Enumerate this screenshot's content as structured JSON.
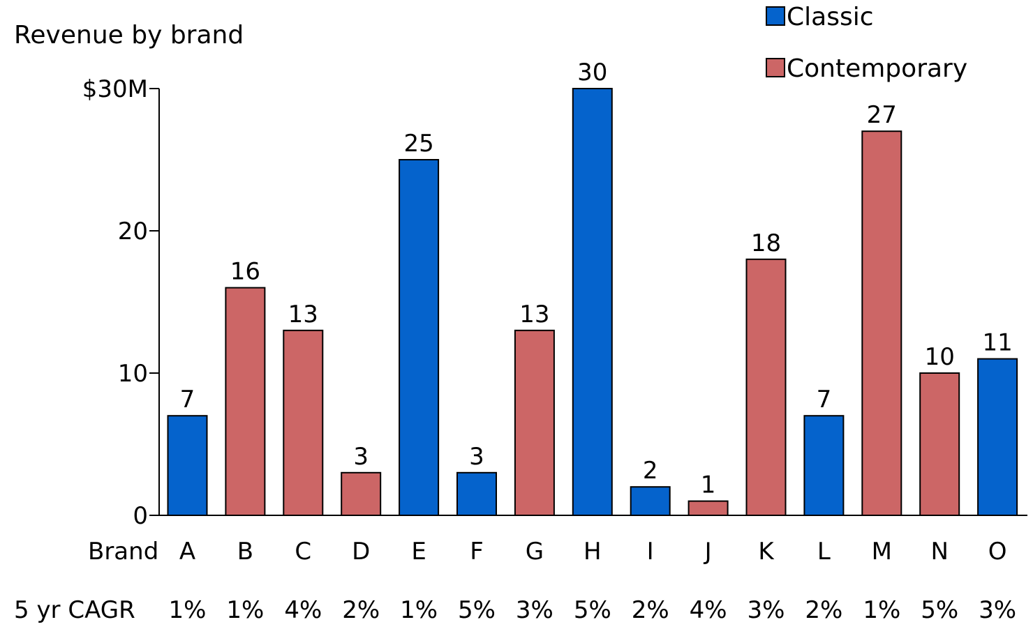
{
  "chart_data": {
    "type": "bar",
    "title": "Revenue by brand",
    "x_row_label": "Brand",
    "categories": [
      "A",
      "B",
      "C",
      "D",
      "E",
      "F",
      "G",
      "H",
      "I",
      "J",
      "K",
      "L",
      "M",
      "N",
      "O"
    ],
    "values": [
      7,
      16,
      13,
      3,
      25,
      3,
      13,
      30,
      2,
      1,
      18,
      7,
      27,
      10,
      11
    ],
    "groups": [
      "Classic",
      "Contemporary",
      "Contemporary",
      "Contemporary",
      "Classic",
      "Classic",
      "Contemporary",
      "Classic",
      "Classic",
      "Contemporary",
      "Contemporary",
      "Classic",
      "Contemporary",
      "Contemporary",
      "Classic"
    ],
    "legend": [
      {
        "name": "Classic",
        "color": "#0563CC"
      },
      {
        "name": "Contemporary",
        "color": "#CC6666"
      }
    ],
    "legend_position": "top-right",
    "yticks": [
      0,
      10,
      20,
      30
    ],
    "ytick_labels": [
      "0",
      "10",
      "20",
      "$30M"
    ],
    "ylim": [
      0,
      30
    ],
    "grid": false,
    "cagr_row_label": "5 yr CAGR",
    "cagr": [
      "1%",
      "1%",
      "4%",
      "2%",
      "1%",
      "5%",
      "3%",
      "5%",
      "2%",
      "4%",
      "3%",
      "2%",
      "1%",
      "5%",
      "3%"
    ]
  }
}
